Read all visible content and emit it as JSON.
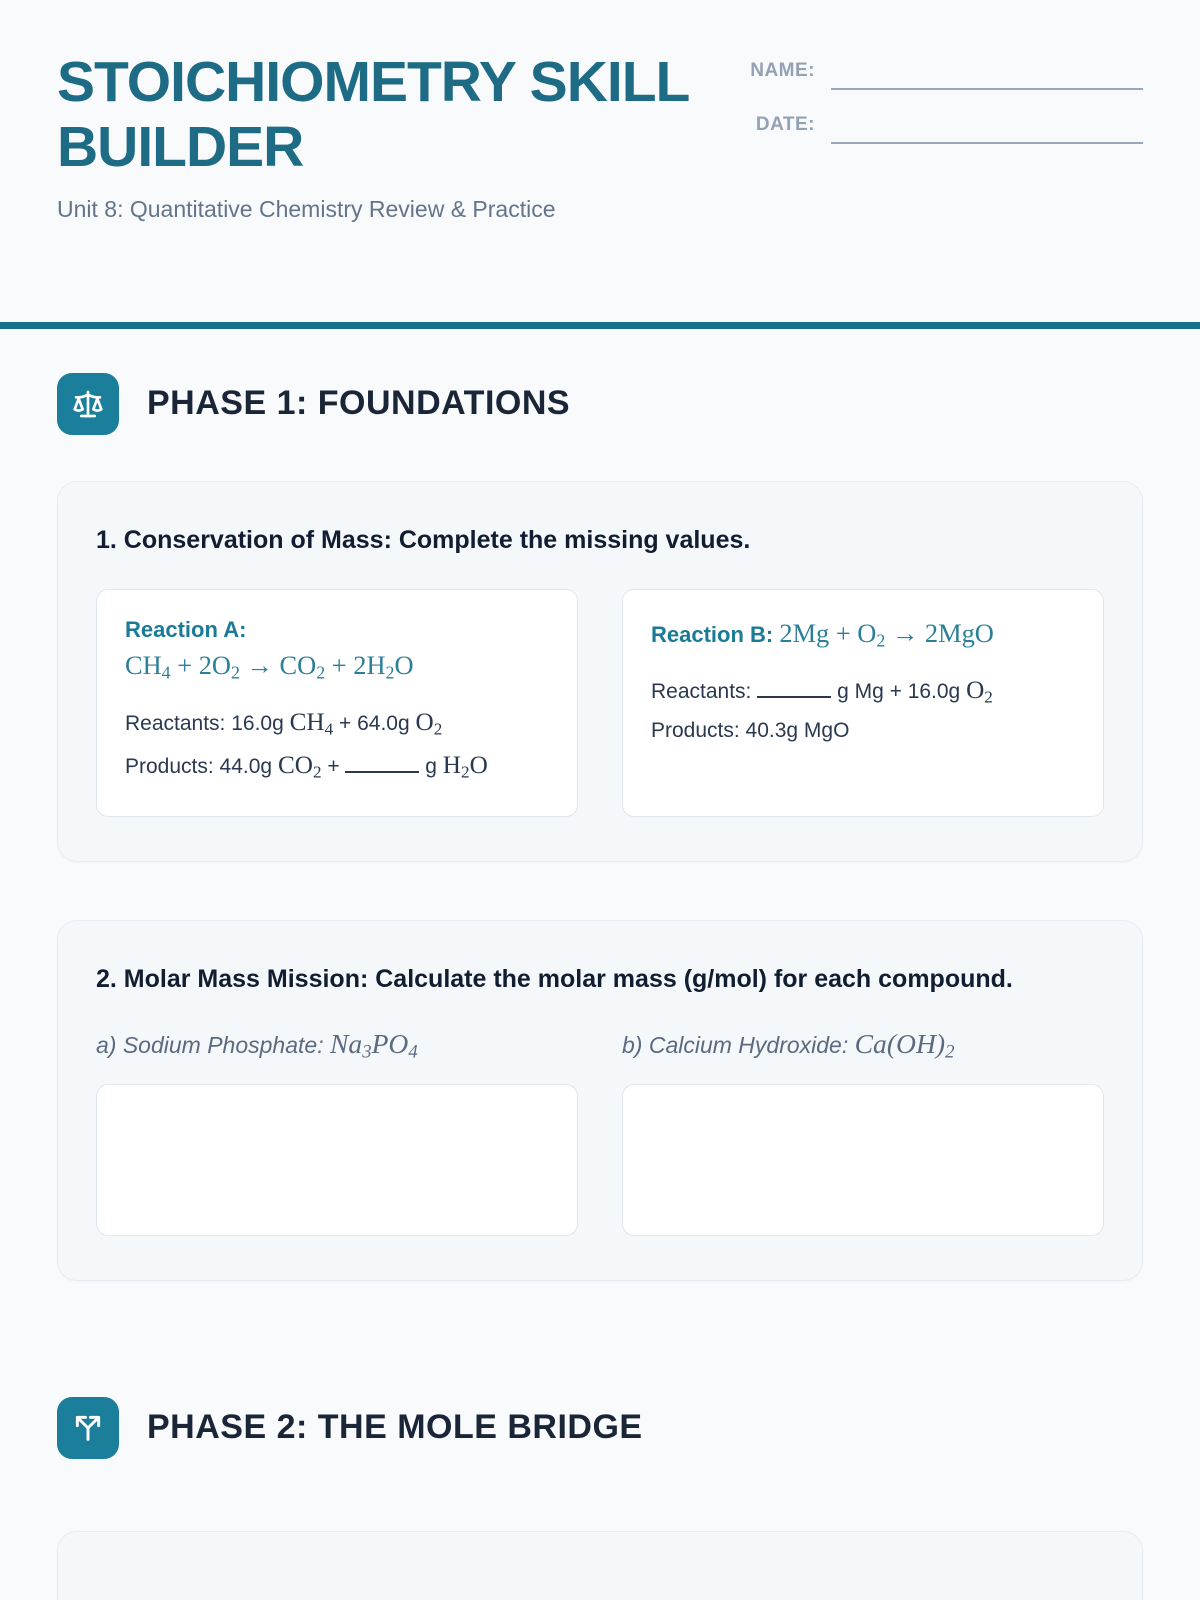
{
  "accent_color": "#1b7e9a",
  "title_color": "#1d6b84",
  "header": {
    "title": "STOICHIOMETRY SKILL BUILDER",
    "subtitle": "Unit 8: Quantitative Chemistry Review & Practice",
    "fields": [
      {
        "label": "NAME:"
      },
      {
        "label": "DATE:"
      }
    ]
  },
  "phase1": {
    "title": "PHASE 1: FOUNDATIONS",
    "icon": "balance-scale"
  },
  "q1": {
    "heading": "1. Conservation of Mass: Complete the missing values.",
    "reaction_a": {
      "label": "Reaction A:",
      "equation": "`CH~4~ + 2O~2~ → CO~2~ + 2H~2~O`",
      "lines": [
        "Reactants: 16.0g `CH~4~` + 64.0g `O~2~`",
        "Products: 44.0g `CO~2~` + [blank] g `H~2~O`"
      ]
    },
    "reaction_b": {
      "label": "Reaction B:",
      "equation": "`2Mg + O~2~ → 2MgO`",
      "lines": [
        "Reactants: [blank] g Mg + 16.0g `O~2~`",
        "Products: 40.3g MgO"
      ]
    }
  },
  "q2": {
    "heading": "2. Molar Mass Mission: Calculate the molar mass (g/mol) for each compound.",
    "items": [
      {
        "label": "a) Sodium Phosphate:",
        "formula": "`Na~3~PO~4~`"
      },
      {
        "label": "b) Calcium Hydroxide:",
        "formula": "`Ca(OH)~2~`"
      }
    ]
  },
  "phase2": {
    "title": "PHASE 2: THE MOLE BRIDGE",
    "icon": "split-arrows"
  }
}
